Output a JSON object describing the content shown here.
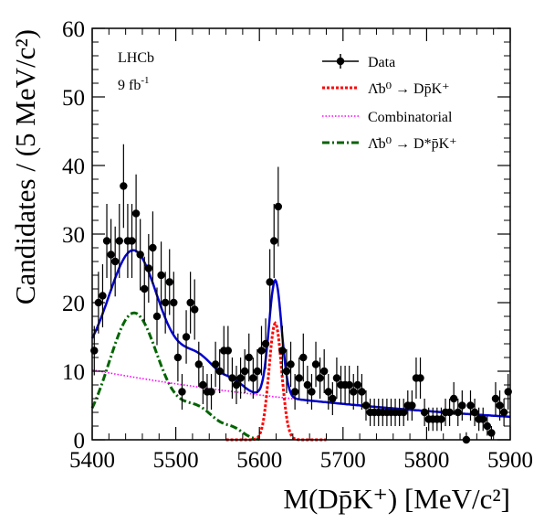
{
  "chart_data": {
    "type": "scatter",
    "experiment": "LHCb",
    "luminosity": "9 fb",
    "luminosity_exponent": "-1",
    "xlabel": "M(Dp̄K⁺) [MeV/c²]",
    "ylabel": "Candidates / (5 MeV/c²)",
    "xlim": [
      5400,
      5900
    ],
    "ylim": [
      0,
      60
    ],
    "x_ticks": [
      "5400",
      "5500",
      "5600",
      "5700",
      "5800",
      "5900"
    ],
    "y_ticks": [
      "0",
      "10",
      "20",
      "30",
      "40",
      "50",
      "60"
    ],
    "legend_position": "top-right",
    "legend": [
      {
        "label": "Data",
        "style": "marker-line",
        "color": "#000000"
      },
      {
        "label": "Λ̄b⁰ → Dp̄K⁺",
        "style": "dotted",
        "color": "#ff0000"
      },
      {
        "label": "Combinatorial",
        "style": "dotted",
        "color": "#ff00ff"
      },
      {
        "label": "Λ̄b⁰ → D*p̄K⁺",
        "style": "dash-dot",
        "color": "#006400"
      }
    ],
    "data_points": {
      "name": "Data",
      "x": [
        5402.5,
        5407.5,
        5412.5,
        5417.5,
        5422.5,
        5427.5,
        5432.5,
        5437.5,
        5442.5,
        5447.5,
        5452.5,
        5457.5,
        5462.5,
        5467.5,
        5472.5,
        5477.5,
        5482.5,
        5487.5,
        5492.5,
        5497.5,
        5502.5,
        5507.5,
        5512.5,
        5517.5,
        5522.5,
        5527.5,
        5532.5,
        5537.5,
        5542.5,
        5547.5,
        5552.5,
        5557.5,
        5562.5,
        5567.5,
        5572.5,
        5577.5,
        5582.5,
        5587.5,
        5592.5,
        5597.5,
        5602.5,
        5607.5,
        5612.5,
        5617.5,
        5622.5,
        5627.5,
        5632.5,
        5637.5,
        5642.5,
        5647.5,
        5652.5,
        5657.5,
        5662.5,
        5667.5,
        5672.5,
        5677.5,
        5682.5,
        5687.5,
        5692.5,
        5697.5,
        5702.5,
        5707.5,
        5712.5,
        5717.5,
        5722.5,
        5727.5,
        5732.5,
        5737.5,
        5742.5,
        5747.5,
        5752.5,
        5757.5,
        5762.5,
        5767.5,
        5772.5,
        5777.5,
        5782.5,
        5787.5,
        5792.5,
        5797.5,
        5802.5,
        5807.5,
        5812.5,
        5817.5,
        5822.5,
        5827.5,
        5832.5,
        5837.5,
        5842.5,
        5847.5,
        5852.5,
        5857.5,
        5862.5,
        5867.5,
        5872.5,
        5877.5,
        5882.5,
        5887.5,
        5892.5,
        5897.5
      ],
      "y": [
        13,
        20,
        21,
        29,
        27,
        26,
        29,
        37,
        29,
        29,
        33,
        27,
        22,
        25,
        28,
        18,
        24,
        20,
        23,
        20,
        12,
        7,
        15,
        20,
        19,
        11,
        8,
        7,
        7,
        11,
        10,
        13,
        13,
        9,
        8,
        9,
        10,
        12,
        9,
        10,
        13,
        14,
        23,
        29,
        34,
        13,
        10,
        11,
        7,
        9,
        12,
        8,
        7,
        11,
        9,
        10,
        7,
        6,
        9,
        8,
        8,
        8,
        7,
        8,
        7,
        5,
        4,
        4,
        4,
        4,
        4,
        4,
        4,
        4,
        4,
        5,
        5,
        9,
        9,
        4,
        3,
        3,
        3,
        3,
        4,
        4,
        6,
        4,
        5,
        0,
        5,
        4,
        3,
        3,
        2,
        1,
        6,
        5,
        4,
        7
      ],
      "errors": [
        3.6,
        4.5,
        4.6,
        5.4,
        5.2,
        5.1,
        5.4,
        6.1,
        5.4,
        5.4,
        5.7,
        5.2,
        4.7,
        5.0,
        5.3,
        4.2,
        4.9,
        4.5,
        4.8,
        4.5,
        3.5,
        2.6,
        3.9,
        4.5,
        4.4,
        3.3,
        2.8,
        2.6,
        2.6,
        3.3,
        3.2,
        3.6,
        3.6,
        3.0,
        2.8,
        3.0,
        3.2,
        3.5,
        3.0,
        3.2,
        3.6,
        3.7,
        4.8,
        5.4,
        5.8,
        3.6,
        3.2,
        3.3,
        2.6,
        3.0,
        3.5,
        2.8,
        2.6,
        3.3,
        3.0,
        3.2,
        2.6,
        2.4,
        3.0,
        2.8,
        2.8,
        2.8,
        2.6,
        2.8,
        2.6,
        2.2,
        2.0,
        2.0,
        2.0,
        2.0,
        2.0,
        2.0,
        2.0,
        2.0,
        2.0,
        2.2,
        2.2,
        3.0,
        3.0,
        2.0,
        1.7,
        1.7,
        1.7,
        1.7,
        2.0,
        2.0,
        2.4,
        2.0,
        2.2,
        1.1,
        2.2,
        2.0,
        1.7,
        1.7,
        1.4,
        1.0,
        2.4,
        2.2,
        2.0,
        2.6
      ]
    }
  },
  "colors": {
    "total_fit": "#0000cc",
    "signal": "#ff0000",
    "combinatorial": "#ff00ff",
    "dstar": "#006400",
    "data": "#000000"
  }
}
